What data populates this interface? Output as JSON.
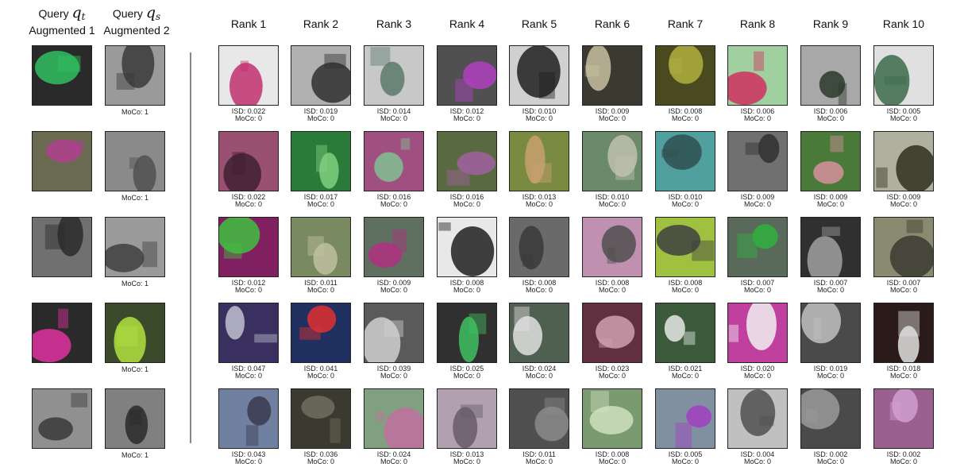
{
  "header": {
    "query_label_1": "Query",
    "query_symbol_1": "q",
    "query_sub_1": "t",
    "augmented_1": "Augmented 1",
    "query_label_2": "Query",
    "query_symbol_2": "q",
    "query_sub_2": "s",
    "augmented_2": "Augmented 2"
  },
  "ranks": [
    "Rank 1",
    "Rank 2",
    "Rank 3",
    "Rank 4",
    "Rank 5",
    "Rank 6",
    "Rank 7",
    "Rank 8",
    "Rank 9",
    "Rank 10"
  ],
  "rows": [
    {
      "query_caption": "MoCo: 1",
      "query_images": [
        {
          "tone": "#2a2a2a",
          "accent": "#30c060"
        },
        {
          "tone": "#9a9a9a",
          "accent": "#3a3a3a"
        }
      ],
      "results": [
        {
          "isd": "ISD: 0.022",
          "moco": "MoCo: 0",
          "tone": "#e8e8e8",
          "accent": "#c03070"
        },
        {
          "isd": "ISD: 0.019",
          "moco": "MoCo: 0",
          "tone": "#b0b0b0",
          "accent": "#303030"
        },
        {
          "isd": "ISD: 0.014",
          "moco": "MoCo: 0",
          "tone": "#c8c8c8",
          "accent": "#5a7a6a"
        },
        {
          "isd": "ISD: 0.012",
          "moco": "MoCo: 0",
          "tone": "#505050",
          "accent": "#b040c0"
        },
        {
          "isd": "ISD: 0.010",
          "moco": "MoCo: 0",
          "tone": "#d0d0d0",
          "accent": "#202020"
        },
        {
          "isd": "ISD: 0.009",
          "moco": "MoCo: 0",
          "tone": "#3a3a30",
          "accent": "#c8c0a0"
        },
        {
          "isd": "ISD: 0.008",
          "moco": "MoCo: 0",
          "tone": "#4a4a20",
          "accent": "#b0b040"
        },
        {
          "isd": "ISD: 0.006",
          "moco": "MoCo: 0",
          "tone": "#a0d0a0",
          "accent": "#d03060"
        },
        {
          "isd": "ISD: 0.006",
          "moco": "MoCo: 0",
          "tone": "#a8a8a8",
          "accent": "#2a3a2a"
        },
        {
          "isd": "ISD: 0.005",
          "moco": "MoCo: 0",
          "tone": "#e0e0e0",
          "accent": "#3a6a4a"
        }
      ]
    },
    {
      "query_caption": "MoCo: 1",
      "query_images": [
        {
          "tone": "#6a6a50",
          "accent": "#b04090"
        },
        {
          "tone": "#8a8a8a",
          "accent": "#505050"
        }
      ],
      "results": [
        {
          "isd": "ISD: 0.022",
          "moco": "MoCo: 0",
          "tone": "#9a5070",
          "accent": "#402030"
        },
        {
          "isd": "ISD: 0.017",
          "moco": "MoCo: 0",
          "tone": "#2a7a3a",
          "accent": "#80d080"
        },
        {
          "isd": "ISD: 0.016",
          "moco": "MoCo: 0",
          "tone": "#a05080",
          "accent": "#80c090"
        },
        {
          "isd": "ISD: 0.016",
          "moco": "MoCo: 0",
          "tone": "#5a6a40",
          "accent": "#a060a0"
        },
        {
          "isd": "ISD: 0.013",
          "moco": "MoCo: 0",
          "tone": "#7a8a40",
          "accent": "#c8a070"
        },
        {
          "isd": "ISD: 0.010",
          "moco": "MoCo: 0",
          "tone": "#6a8a6a",
          "accent": "#c0c0b0"
        },
        {
          "isd": "ISD: 0.010",
          "moco": "MoCo: 0",
          "tone": "#50a0a0",
          "accent": "#305050"
        },
        {
          "isd": "ISD: 0.009",
          "moco": "MoCo: 0",
          "tone": "#707070",
          "accent": "#303030"
        },
        {
          "isd": "ISD: 0.009",
          "moco": "MoCo: 0",
          "tone": "#4a7a3a",
          "accent": "#d890a0"
        },
        {
          "isd": "ISD: 0.009",
          "moco": "MoCo: 0",
          "tone": "#b0b0a0",
          "accent": "#303020"
        }
      ]
    },
    {
      "query_caption": "MoCo: 1",
      "query_images": [
        {
          "tone": "#707070",
          "accent": "#2a2a2a"
        },
        {
          "tone": "#9a9a9a",
          "accent": "#404040"
        }
      ],
      "results": [
        {
          "isd": "ISD: 0.012",
          "moco": "MoCo: 0",
          "tone": "#802060",
          "accent": "#40c040"
        },
        {
          "isd": "ISD: 0.011",
          "moco": "MoCo: 0",
          "tone": "#7a8a60",
          "accent": "#c0c0a0"
        },
        {
          "isd": "ISD: 0.009",
          "moco": "MoCo: 0",
          "tone": "#607060",
          "accent": "#b03080"
        },
        {
          "isd": "ISD: 0.008",
          "moco": "MoCo: 0",
          "tone": "#e8e8e8",
          "accent": "#202020"
        },
        {
          "isd": "ISD: 0.008",
          "moco": "MoCo: 0",
          "tone": "#6a6a6a",
          "accent": "#3a3a3a"
        },
        {
          "isd": "ISD: 0.008",
          "moco": "MoCo: 0",
          "tone": "#c090b0",
          "accent": "#505050"
        },
        {
          "isd": "ISD: 0.008",
          "moco": "MoCo: 0",
          "tone": "#a0c040",
          "accent": "#404040"
        },
        {
          "isd": "ISD: 0.007",
          "moco": "MoCo: 0",
          "tone": "#5a6a5a",
          "accent": "#30b040"
        },
        {
          "isd": "ISD: 0.007",
          "moco": "MoCo: 0",
          "tone": "#303030",
          "accent": "#a0a0a0"
        },
        {
          "isd": "ISD: 0.007",
          "moco": "MoCo: 0",
          "tone": "#8a8a70",
          "accent": "#3a3a30"
        }
      ]
    },
    {
      "query_caption": "MoCo: 1",
      "query_images": [
        {
          "tone": "#2a2a2a",
          "accent": "#e030a0"
        },
        {
          "tone": "#3a4a2a",
          "accent": "#b0e040"
        }
      ],
      "results": [
        {
          "isd": "ISD: 0.047",
          "moco": "MoCo: 0",
          "tone": "#3a3060",
          "accent": "#c0c0d0"
        },
        {
          "isd": "ISD: 0.041",
          "moco": "MoCo: 0",
          "tone": "#203060",
          "accent": "#e03030"
        },
        {
          "isd": "ISD: 0.039",
          "moco": "MoCo: 0",
          "tone": "#5a5a5a",
          "accent": "#d0d0d0"
        },
        {
          "isd": "ISD: 0.025",
          "moco": "MoCo: 0",
          "tone": "#303030",
          "accent": "#40c060"
        },
        {
          "isd": "ISD: 0.024",
          "moco": "MoCo: 0",
          "tone": "#506050",
          "accent": "#e0e0e0"
        },
        {
          "isd": "ISD: 0.023",
          "moco": "MoCo: 0",
          "tone": "#603040",
          "accent": "#d0a0b0"
        },
        {
          "isd": "ISD: 0.021",
          "moco": "MoCo: 0",
          "tone": "#3a5a3a",
          "accent": "#e8e8e8"
        },
        {
          "isd": "ISD: 0.020",
          "moco": "MoCo: 0",
          "tone": "#c040a0",
          "accent": "#f0f0f0"
        },
        {
          "isd": "ISD: 0.019",
          "moco": "MoCo: 0",
          "tone": "#4a4a4a",
          "accent": "#c0c0c0"
        },
        {
          "isd": "ISD: 0.018",
          "moco": "MoCo: 0",
          "tone": "#2a1a1a",
          "accent": "#e0e0e0"
        }
      ]
    },
    {
      "query_caption": "MoCo: 1",
      "query_images": [
        {
          "tone": "#909090",
          "accent": "#3a3a3a"
        },
        {
          "tone": "#808080",
          "accent": "#2a2a2a"
        }
      ],
      "results": [
        {
          "isd": "ISD: 0.043",
          "moco": "MoCo: 0",
          "tone": "#7080a0",
          "accent": "#3a3a50"
        },
        {
          "isd": "ISD: 0.036",
          "moco": "MoCo: 0",
          "tone": "#3a3a30",
          "accent": "#707060"
        },
        {
          "isd": "ISD: 0.024",
          "moco": "MoCo: 0",
          "tone": "#80a080",
          "accent": "#c070a0"
        },
        {
          "isd": "ISD: 0.013",
          "moco": "MoCo: 0",
          "tone": "#b0a0b0",
          "accent": "#6a5a6a"
        },
        {
          "isd": "ISD: 0.011",
          "moco": "MoCo: 0",
          "tone": "#505050",
          "accent": "#8a8a8a"
        },
        {
          "isd": "ISD: 0.008",
          "moco": "MoCo: 0",
          "tone": "#7a9a70",
          "accent": "#d0e0c0"
        },
        {
          "isd": "ISD: 0.005",
          "moco": "MoCo: 0",
          "tone": "#8090a0",
          "accent": "#a040c0"
        },
        {
          "isd": "ISD: 0.004",
          "moco": "MoCo: 0",
          "tone": "#c0c0c0",
          "accent": "#505050"
        },
        {
          "isd": "ISD: 0.002",
          "moco": "MoCo: 0",
          "tone": "#4a4a4a",
          "accent": "#9a9a9a"
        },
        {
          "isd": "ISD: 0.002",
          "moco": "MoCo: 0",
          "tone": "#9a6090",
          "accent": "#d0a0d0"
        }
      ]
    }
  ]
}
